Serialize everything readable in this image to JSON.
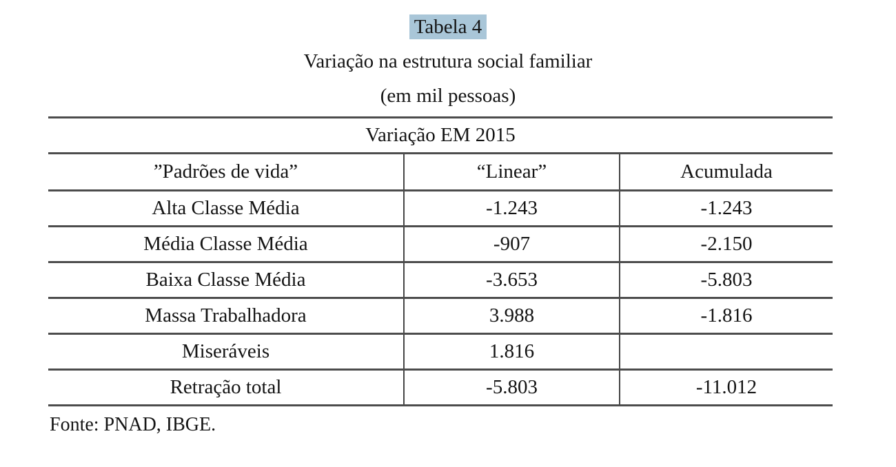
{
  "page": {
    "table_number_label": "Tabela 4",
    "title_line1": "Variação na estrutura social familiar",
    "title_line2": "(em mil pessoas)",
    "source_note": "Fonte: PNAD, IBGE."
  },
  "table": {
    "span_header": "Variação EM 2015",
    "columns": [
      "”Padrões de vida”",
      "“Linear”",
      "Acumulada"
    ],
    "rows": [
      {
        "label": "Alta Classe Média",
        "linear": "-1.243",
        "acumulada": "-1.243"
      },
      {
        "label": "Média Classe Média",
        "linear": "-907",
        "acumulada": "-2.150"
      },
      {
        "label": "Baixa Classe Média",
        "linear": "-3.653",
        "acumulada": "-5.803"
      },
      {
        "label": "Massa Trabalhadora",
        "linear": "3.988",
        "acumulada": "-1.816"
      },
      {
        "label": "Miseráveis",
        "linear": "1.816",
        "acumulada": ""
      },
      {
        "label": "Retração total",
        "linear": "-5.803",
        "acumulada": "-11.012"
      }
    ]
  },
  "colors": {
    "selection_highlight": "#a9c6d8",
    "rule": "#4c4c4c",
    "text": "#141414"
  }
}
